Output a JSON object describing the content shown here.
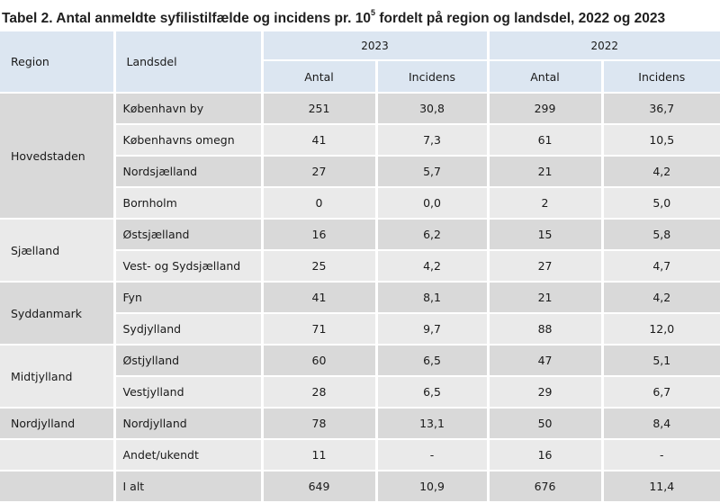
{
  "title": {
    "before": "Tabel 2. Antal anmeldte syfilistilfælde og incidens pr. 10",
    "sup": "5",
    "after": " fordelt på region og landsdel, 2022 og 2023"
  },
  "headers": {
    "region": "Region",
    "landsdel": "Landsdel",
    "year_2023": "2023",
    "year_2022": "2022",
    "antal": "Antal",
    "incidens": "Incidens"
  },
  "regions": [
    {
      "name": "Hovedstaden",
      "rows": [
        {
          "landsdel": "København by",
          "a2023": "251",
          "i2023": "30,8",
          "a2022": "299",
          "i2022": "36,7"
        },
        {
          "landsdel": "Københavns omegn",
          "a2023": "41",
          "i2023": "7,3",
          "a2022": "61",
          "i2022": "10,5"
        },
        {
          "landsdel": "Nordsjælland",
          "a2023": "27",
          "i2023": "5,7",
          "a2022": "21",
          "i2022": "4,2"
        },
        {
          "landsdel": "Bornholm",
          "a2023": "0",
          "i2023": "0,0",
          "a2022": "2",
          "i2022": "5,0"
        }
      ]
    },
    {
      "name": "Sjælland",
      "rows": [
        {
          "landsdel": "Østsjælland",
          "a2023": "16",
          "i2023": "6,2",
          "a2022": "15",
          "i2022": "5,8"
        },
        {
          "landsdel": "Vest- og Sydsjælland",
          "a2023": "25",
          "i2023": "4,2",
          "a2022": "27",
          "i2022": "4,7"
        }
      ]
    },
    {
      "name": "Syddanmark",
      "rows": [
        {
          "landsdel": "Fyn",
          "a2023": "41",
          "i2023": "8,1",
          "a2022": "21",
          "i2022": "4,2"
        },
        {
          "landsdel": "Sydjylland",
          "a2023": "71",
          "i2023": "9,7",
          "a2022": "88",
          "i2022": "12,0"
        }
      ]
    },
    {
      "name": "Midtjylland",
      "rows": [
        {
          "landsdel": "Østjylland",
          "a2023": "60",
          "i2023": "6,5",
          "a2022": "47",
          "i2022": "5,1"
        },
        {
          "landsdel": "Vestjylland",
          "a2023": "28",
          "i2023": "6,5",
          "a2022": "29",
          "i2022": "6,7"
        }
      ]
    },
    {
      "name": "Nordjylland",
      "rows": [
        {
          "landsdel": "Nordjylland",
          "a2023": "78",
          "i2023": "13,1",
          "a2022": "50",
          "i2022": "8,4"
        }
      ]
    }
  ],
  "other": {
    "landsdel": "Andet/ukendt",
    "a2023": "11",
    "i2023": "-",
    "a2022": "16",
    "i2022": "-"
  },
  "total": {
    "landsdel": "I alt",
    "a2023": "649",
    "i2023": "10,9",
    "a2022": "676",
    "i2022": "11,4"
  }
}
